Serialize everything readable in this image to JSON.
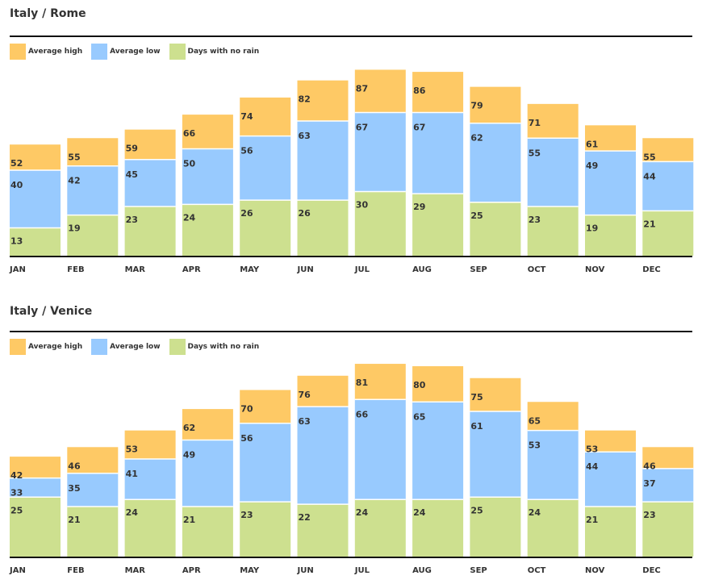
{
  "colors": {
    "high": "#fec965",
    "low": "#98cafe",
    "norain": "#cde08f"
  },
  "chart_data": [
    {
      "type": "bar",
      "title": "Italy / Rome",
      "legend": [
        "Average high",
        "Average low",
        "Days with no rain"
      ],
      "categories": [
        "JAN",
        "FEB",
        "MAR",
        "APR",
        "MAY",
        "JUN",
        "JUL",
        "AUG",
        "SEP",
        "OCT",
        "NOV",
        "DEC"
      ],
      "series": [
        {
          "name": "Average high",
          "values": [
            52,
            55,
            59,
            66,
            74,
            82,
            87,
            86,
            79,
            71,
            61,
            55
          ]
        },
        {
          "name": "Average low",
          "values": [
            40,
            42,
            45,
            50,
            56,
            63,
            67,
            67,
            62,
            55,
            49,
            44
          ]
        },
        {
          "name": "Days with no rain",
          "values": [
            13,
            19,
            23,
            24,
            26,
            26,
            30,
            29,
            25,
            23,
            19,
            21
          ]
        }
      ]
    },
    {
      "type": "bar",
      "title": "Italy / Venice",
      "legend": [
        "Average high",
        "Average low",
        "Days with no rain"
      ],
      "categories": [
        "JAN",
        "FEB",
        "MAR",
        "APR",
        "MAY",
        "JUN",
        "JUL",
        "AUG",
        "SEP",
        "OCT",
        "NOV",
        "DEC"
      ],
      "series": [
        {
          "name": "Average high",
          "values": [
            42,
            46,
            53,
            62,
            70,
            76,
            81,
            80,
            75,
            65,
            53,
            46
          ]
        },
        {
          "name": "Average low",
          "values": [
            33,
            35,
            41,
            49,
            56,
            63,
            66,
            65,
            61,
            53,
            44,
            37
          ]
        },
        {
          "name": "Days with no rain",
          "values": [
            25,
            21,
            24,
            21,
            23,
            22,
            24,
            24,
            25,
            24,
            21,
            23
          ]
        }
      ]
    }
  ]
}
